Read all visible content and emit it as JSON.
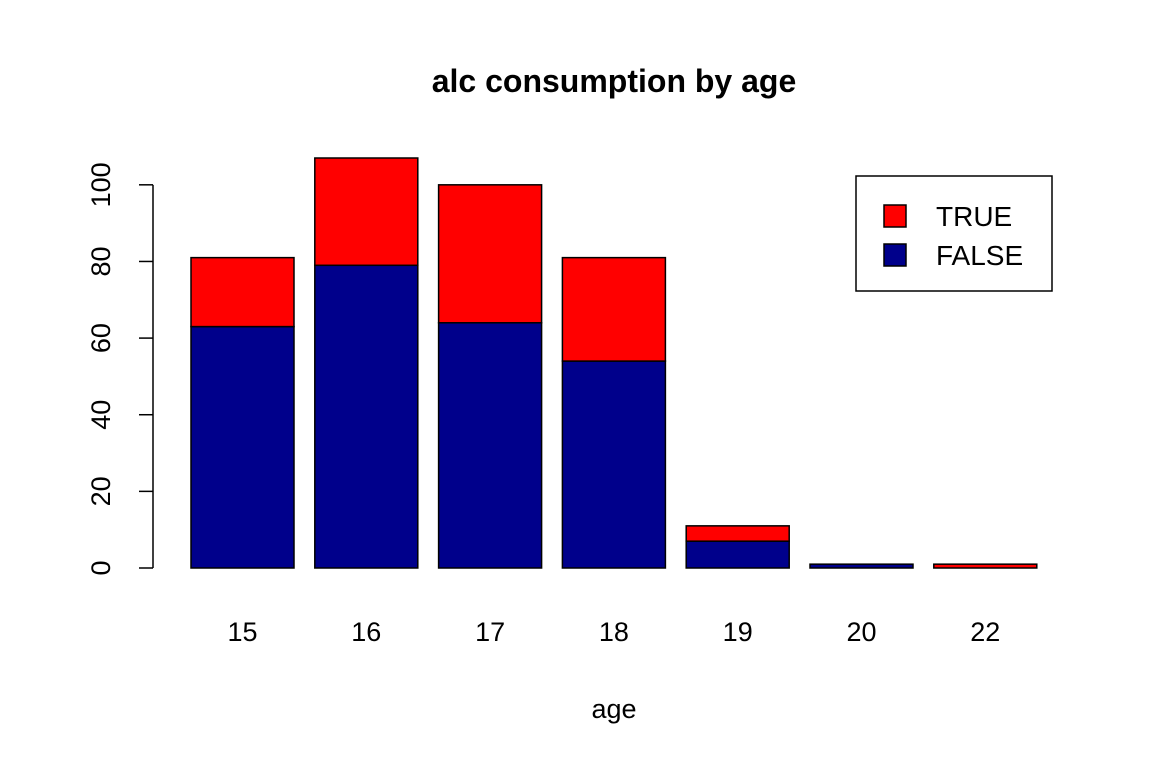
{
  "chart_data": {
    "type": "bar",
    "stacked": true,
    "title": "alc consumption by age",
    "xlabel": "age",
    "ylabel": "",
    "categories": [
      "15",
      "16",
      "17",
      "18",
      "19",
      "20",
      "22"
    ],
    "series": [
      {
        "name": "FALSE",
        "values": [
          63,
          79,
          64,
          54,
          7,
          1,
          0
        ],
        "color": "#00008B"
      },
      {
        "name": "TRUE",
        "values": [
          18,
          28,
          36,
          27,
          4,
          0,
          1
        ],
        "color": "#FF0000"
      }
    ],
    "ylim": [
      0,
      107
    ],
    "yticks": [
      0,
      20,
      40,
      60,
      80,
      100
    ],
    "grid": false,
    "legend": {
      "placement": "top-right",
      "entries": [
        "TRUE",
        "FALSE"
      ]
    }
  }
}
